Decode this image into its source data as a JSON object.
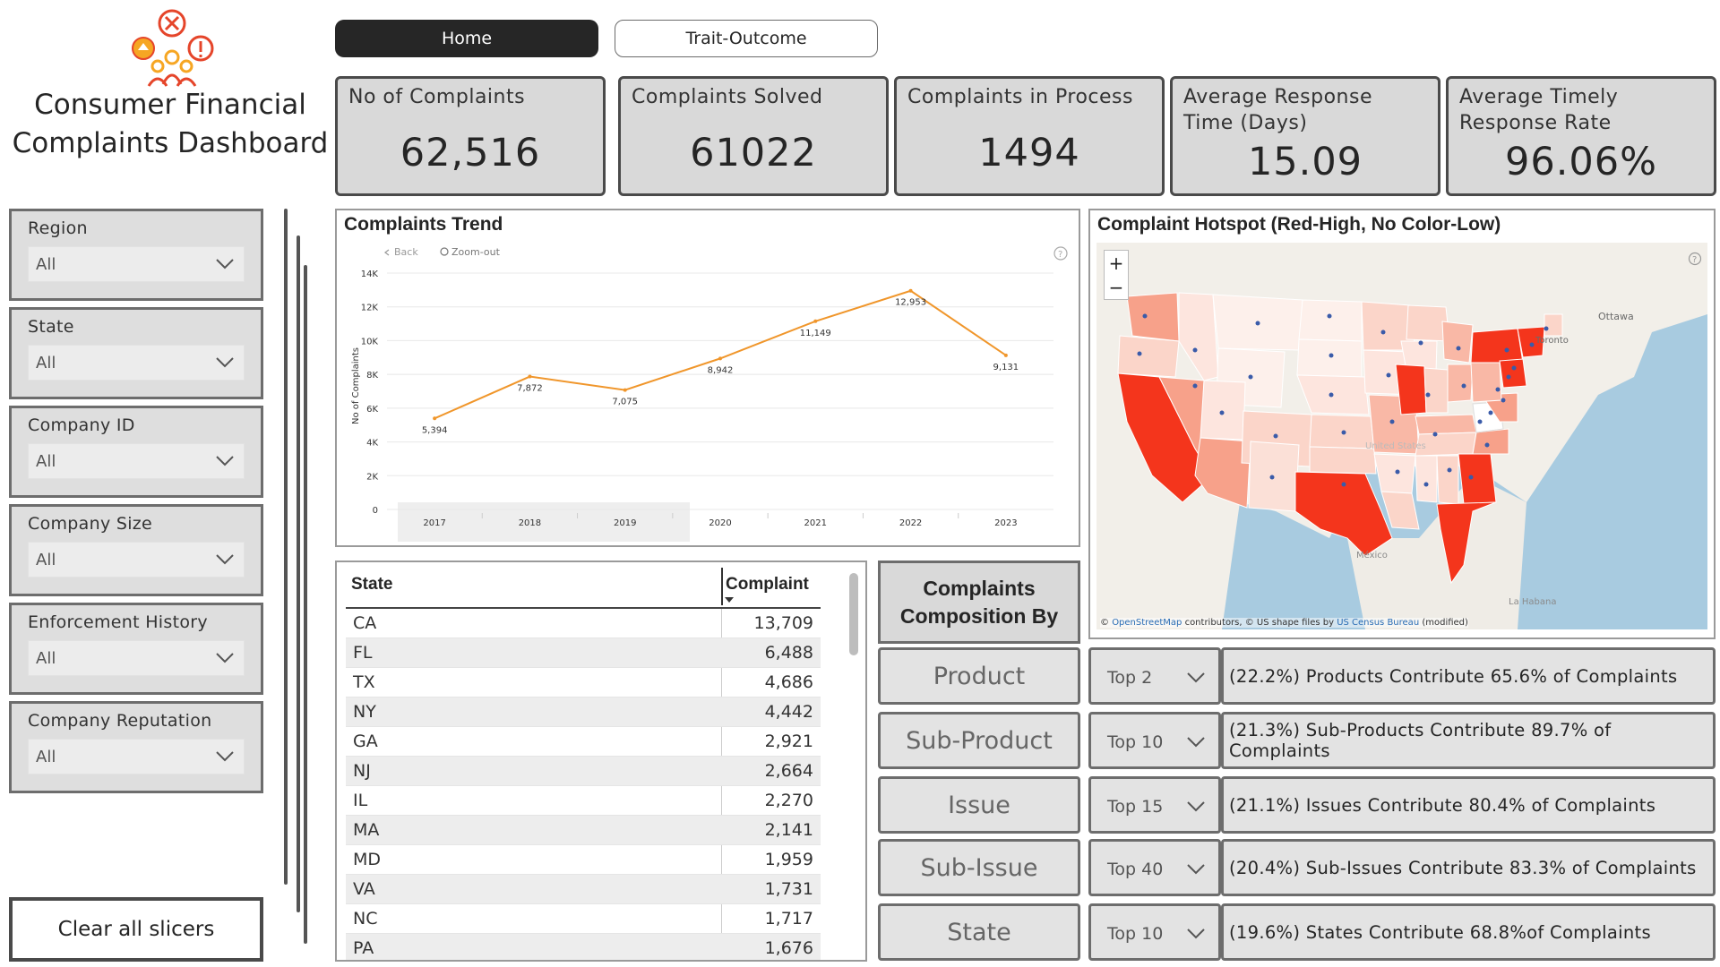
{
  "header": {
    "title_line1": "Consumer Financial",
    "title_line2": "Complaints Dashboard",
    "logo_icon": "complaints-people-icon"
  },
  "nav": {
    "home": "Home",
    "trait": "Trait-Outcome"
  },
  "kpis": [
    {
      "label": "No of Complaints",
      "value": "62,516"
    },
    {
      "label": "Complaints Solved",
      "value": "61022"
    },
    {
      "label": "Complaints in Process",
      "value": "1494"
    },
    {
      "label": "Average Response Time (Days)",
      "value": "15.09"
    },
    {
      "label": "Average Timely Response Rate",
      "value": "96.06%"
    }
  ],
  "slicers": [
    {
      "label": "Region",
      "value": "All"
    },
    {
      "label": "State",
      "value": "All"
    },
    {
      "label": "Company ID",
      "value": "All"
    },
    {
      "label": "Company Size",
      "value": "All"
    },
    {
      "label": "Enforcement History",
      "value": "All"
    },
    {
      "label": "Company Reputation",
      "value": "All"
    }
  ],
  "clear_button": "Clear all slicers",
  "trend": {
    "title": "Complaints Trend",
    "back_label": "Back",
    "zoom_label": "Zoom-out",
    "ylabel": "No of Complaints"
  },
  "chart_data": {
    "type": "line",
    "title": "Complaints Trend",
    "x": [
      "2017",
      "2018",
      "2019",
      "2020",
      "2021",
      "2022",
      "2023"
    ],
    "values": [
      5394,
      7872,
      7075,
      8942,
      11149,
      12953,
      9131
    ],
    "labels": [
      "5,394",
      "7,872",
      "7,075",
      "8,942",
      "11,149",
      "12,953",
      "9,131"
    ],
    "xlabel": "",
    "ylabel": "No of Complaints",
    "ylim": [
      0,
      14000
    ],
    "yticks": [
      "0",
      "2K",
      "4K",
      "6K",
      "8K",
      "10K",
      "12K",
      "14K"
    ],
    "ytick_values": [
      0,
      2000,
      4000,
      6000,
      8000,
      10000,
      12000,
      14000
    ],
    "grid": true,
    "line_color": "#f0962b"
  },
  "map": {
    "title": "Complaint Hotspot (Red-High, No Color-Low)",
    "attribution_prefix": "© ",
    "attribution_osm": "OpenStreetMap",
    "attribution_mid": " contributors, © US shape files by ",
    "attribution_census": "US Census Bureau",
    "attribution_suffix": " (modified)",
    "zoom_in": "+",
    "zoom_out": "−",
    "high_color": "#f4351c",
    "low_color": "#fde5de"
  },
  "table": {
    "col_state": "State",
    "col_complaint": "Complaint",
    "rows": [
      {
        "state": "CA",
        "value": "13,709"
      },
      {
        "state": "FL",
        "value": "6,488"
      },
      {
        "state": "TX",
        "value": "4,686"
      },
      {
        "state": "NY",
        "value": "4,442"
      },
      {
        "state": "GA",
        "value": "2,921"
      },
      {
        "state": "NJ",
        "value": "2,664"
      },
      {
        "state": "IL",
        "value": "2,270"
      },
      {
        "state": "MA",
        "value": "2,141"
      },
      {
        "state": "MD",
        "value": "1,959"
      },
      {
        "state": "VA",
        "value": "1,731"
      },
      {
        "state": "NC",
        "value": "1,717"
      },
      {
        "state": "PA",
        "value": "1,676"
      }
    ]
  },
  "composition": {
    "heading_line1": "Complaints",
    "heading_line2": "Composition By",
    "items": [
      {
        "button": "Product",
        "top": "Top 2",
        "desc": "(22.2%) Products Contribute 65.6% of Complaints"
      },
      {
        "button": "Sub-Product",
        "top": "Top 10",
        "desc": "(21.3%) Sub-Products Contribute 89.7% of Complaints"
      },
      {
        "button": "Issue",
        "top": "Top 15",
        "desc": "(21.1%) Issues Contribute 80.4% of Complaints"
      },
      {
        "button": "Sub-Issue",
        "top": "Top 40",
        "desc": "(20.4%) Sub-Issues Contribute 83.3% of Complaints"
      },
      {
        "button": "State",
        "top": "Top 10",
        "desc": "(19.6%) States Contribute 68.8%of Complaints"
      }
    ]
  }
}
